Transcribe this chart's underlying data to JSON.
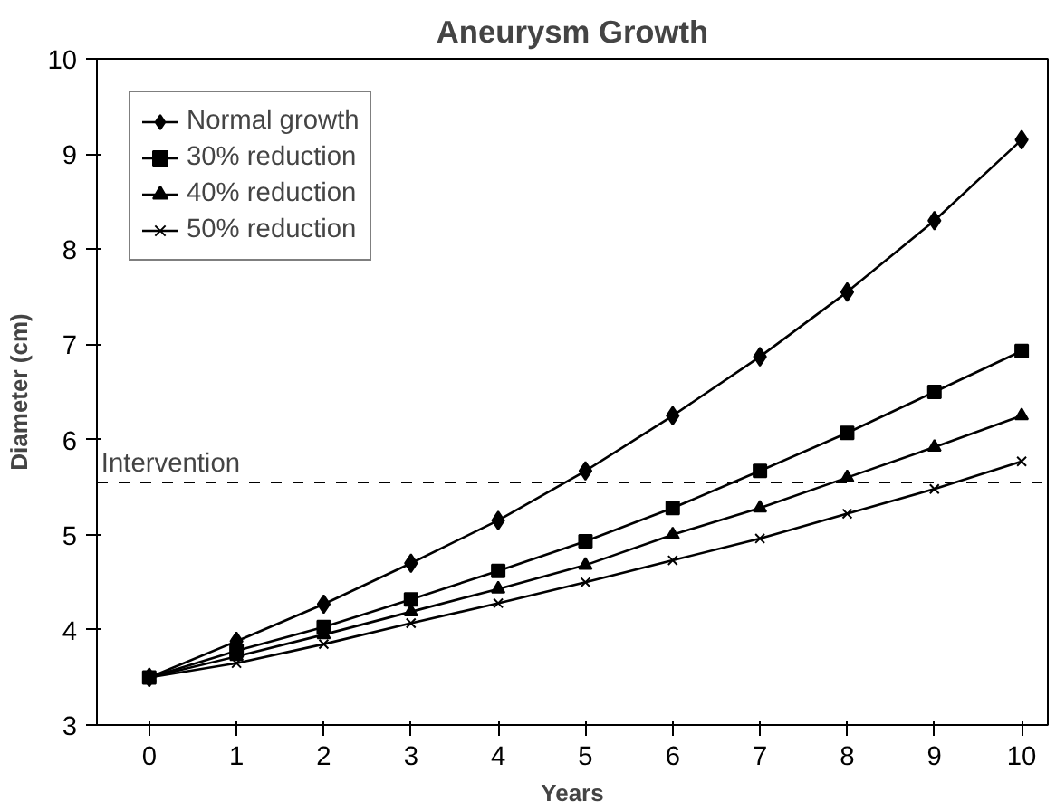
{
  "chart_data": {
    "type": "line",
    "title": "Aneurysm Growth",
    "xlabel": "Years",
    "ylabel": "Diameter (cm)",
    "x": [
      0,
      1,
      2,
      3,
      4,
      5,
      6,
      7,
      8,
      9,
      10
    ],
    "series": [
      {
        "name": "Normal growth",
        "color": "#000000",
        "marker": "diamond",
        "values": [
          3.5,
          3.88,
          4.27,
          4.7,
          5.15,
          5.67,
          6.25,
          6.87,
          7.55,
          8.3,
          9.15
        ]
      },
      {
        "name": "30% reduction",
        "color": "#000000",
        "marker": "square",
        "values": [
          3.5,
          3.78,
          4.03,
          4.32,
          4.62,
          4.93,
          5.28,
          5.67,
          6.07,
          6.5,
          6.93
        ]
      },
      {
        "name": "40% reduction",
        "color": "#000000",
        "marker": "triangle",
        "values": [
          3.5,
          3.72,
          3.95,
          4.19,
          4.43,
          4.68,
          5.0,
          5.28,
          5.6,
          5.92,
          6.25
        ]
      },
      {
        "name": "50% reduction",
        "color": "#000000",
        "marker": "cross",
        "values": [
          3.5,
          3.65,
          3.85,
          4.07,
          4.28,
          4.5,
          4.73,
          4.96,
          5.22,
          5.48,
          5.77
        ]
      }
    ],
    "xlim": [
      -0.6,
      10.3
    ],
    "ylim": [
      3,
      10
    ],
    "xticks": [
      0,
      1,
      2,
      3,
      4,
      5,
      6,
      7,
      8,
      9,
      10
    ],
    "yticks": [
      3,
      4,
      5,
      6,
      7,
      8,
      9,
      10
    ],
    "ref_lines": [
      {
        "axis": "y",
        "value": 5.55,
        "label": "Intervention",
        "color": "#000000",
        "line_style": "dashed"
      }
    ],
    "legend": "top left",
    "grid": false,
    "line_style": "solid"
  }
}
